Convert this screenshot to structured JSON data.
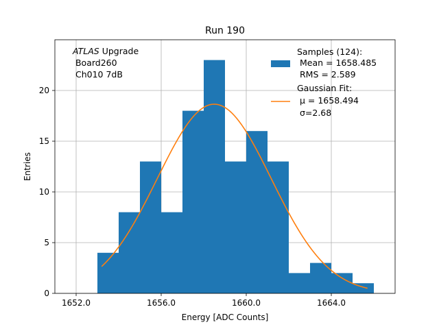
{
  "chart_data": {
    "type": "bar",
    "title": "Run 190",
    "xlabel": "Energy [ADC Counts]",
    "ylabel": "Entries",
    "xlim": [
      1651.0,
      1667.0
    ],
    "ylim": [
      0,
      25
    ],
    "grid": true,
    "xticks": [
      1652.0,
      1656.0,
      1660.0,
      1664.0
    ],
    "xtick_labels": [
      "1652.0",
      "1656.0",
      "1660.0",
      "1664.0"
    ],
    "yticks": [
      0,
      5,
      10,
      15,
      20
    ],
    "ytick_labels": [
      "0",
      "5",
      "10",
      "15",
      "20"
    ],
    "histogram": {
      "name": "Samples (124)",
      "bin_edges": [
        1653.0,
        1654.0,
        1655.0,
        1656.0,
        1657.0,
        1658.0,
        1659.0,
        1660.0,
        1661.0,
        1662.0,
        1663.0,
        1664.0,
        1665.0,
        1666.0
      ],
      "counts": [
        4,
        8,
        13,
        8,
        18,
        23,
        13,
        16,
        13,
        2,
        3,
        2,
        1
      ],
      "color": "#1f77b4"
    },
    "fit": {
      "name": "Gaussian Fit",
      "mu": 1658.494,
      "sigma": 2.68,
      "amplitude": 18.65,
      "x_range": [
        1653.2,
        1665.7
      ],
      "color": "#ff7f0e"
    },
    "annotation": {
      "italic": "ATLAS",
      "rest": " Upgrade",
      "lines": [
        " Board260",
        " Ch010 7dB"
      ]
    },
    "legend": {
      "position": "top-right",
      "hist_lines": [
        "Samples (124):",
        " Mean = 1658.485",
        " RMS = 2.589"
      ],
      "fit_lines": [
        "Gaussian Fit:",
        " μ = 1658.494",
        " σ=2.68"
      ]
    }
  }
}
